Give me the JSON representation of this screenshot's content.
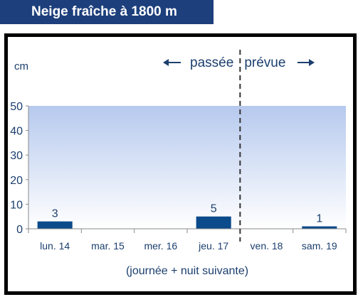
{
  "title": "Neige fraîche à 1800 m",
  "colors": {
    "title_bg": "#1d3f7c",
    "bar": "#0b4a8b",
    "text": "#1c3f6e",
    "plot_top": "#b6c9ee",
    "plot_bottom": "#ffffff"
  },
  "chart_data": {
    "type": "bar",
    "unit_label": "cm",
    "categories": [
      "lun. 14",
      "mar. 15",
      "mer. 16",
      "jeu. 17",
      "ven. 18",
      "sam. 19"
    ],
    "values": [
      3,
      0,
      0,
      5,
      0,
      1
    ],
    "value_labels": [
      "3",
      "",
      "",
      "5",
      "",
      "1"
    ],
    "yticks": [
      0,
      10,
      20,
      30,
      40,
      50
    ],
    "ylim": [
      0,
      50
    ],
    "xlabel": "(journée + nuit suivante)",
    "past_label": "passée",
    "forecast_label": "prévue",
    "divider_after_index": 3,
    "grid": false
  }
}
